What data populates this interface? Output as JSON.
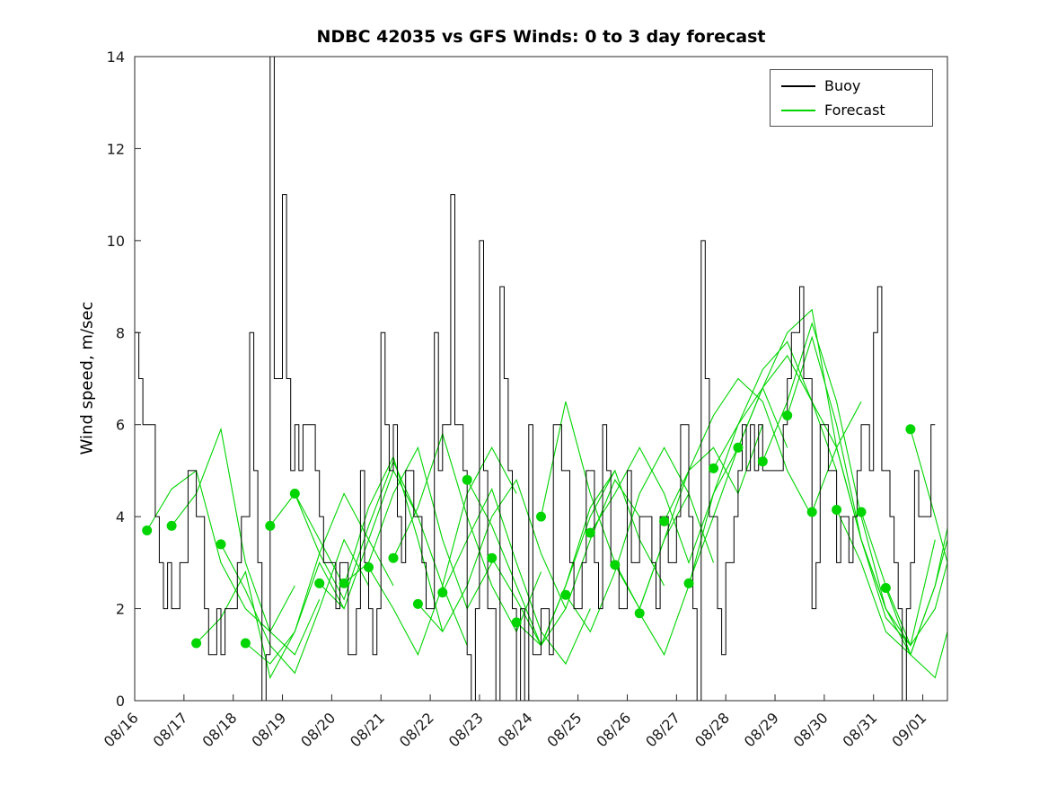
{
  "title": "NDBC 42035 vs GFS Winds: 0 to 3 day forecast",
  "legend": {
    "items": [
      {
        "label": "Buoy",
        "color": "#000000"
      },
      {
        "label": "Forecast",
        "color": "#00d500"
      }
    ],
    "position": "top-right"
  },
  "colors": {
    "buoy": "#000000",
    "forecast": "#00d500",
    "axis": "#262626",
    "background": "#ffffff"
  },
  "chart_data": {
    "type": "line",
    "title": "NDBC 42035 vs GFS Winds: 0 to 3 day forecast",
    "xlabel": "",
    "ylabel": "Wind speed, m/sec",
    "xlim": [
      0,
      16.5
    ],
    "ylim": [
      0,
      14
    ],
    "grid": false,
    "x_ticks": [
      0,
      1,
      2,
      3,
      4,
      5,
      6,
      7,
      8,
      9,
      10,
      11,
      12,
      13,
      14,
      15,
      16
    ],
    "x_tick_labels": [
      "08/16",
      "08/17",
      "08/18",
      "08/19",
      "08/20",
      "08/21",
      "08/22",
      "08/23",
      "08/24",
      "08/25",
      "08/26",
      "08/27",
      "08/28",
      "08/29",
      "08/30",
      "08/31",
      "09/01"
    ],
    "x_tick_angle": 45,
    "y_ticks": [
      0,
      2,
      4,
      6,
      8,
      10,
      12,
      14
    ],
    "series": [
      {
        "name": "Buoy",
        "style": "step",
        "color": "#000000",
        "x_start": 0,
        "dt": 0.0833333,
        "values": [
          8,
          7,
          6,
          6,
          6,
          4,
          3,
          2,
          3,
          2,
          2,
          3,
          3,
          5,
          5,
          4,
          4,
          2,
          1,
          1,
          2,
          1,
          2,
          2,
          2,
          3,
          4,
          4,
          8,
          5,
          3,
          0,
          1,
          14,
          7,
          7,
          11,
          7,
          5,
          6,
          5,
          6,
          6,
          6,
          5,
          4,
          3,
          3,
          3,
          2,
          3,
          3,
          1,
          1,
          2,
          5,
          3,
          2,
          1,
          2,
          8,
          6,
          5,
          6,
          4,
          3,
          5,
          5,
          4,
          4,
          3,
          2,
          2,
          8,
          5,
          6,
          6,
          11,
          6,
          6,
          5,
          1,
          0,
          2,
          10,
          5,
          2,
          2,
          0,
          9,
          7,
          5,
          2,
          0,
          2,
          0,
          6,
          1,
          1,
          2,
          2,
          1,
          6,
          6,
          5,
          5,
          3,
          2,
          2,
          3,
          5,
          5,
          3,
          2,
          6,
          5,
          3,
          3,
          2,
          2,
          5,
          3,
          3,
          4,
          4,
          4,
          3,
          2,
          4,
          4,
          3,
          3,
          4,
          6,
          6,
          4,
          2,
          0,
          10,
          7,
          4,
          4,
          2,
          1,
          3,
          3,
          4,
          5,
          6,
          5,
          6,
          5,
          6,
          5,
          5,
          5,
          5,
          5,
          6,
          7,
          8,
          8,
          9,
          7,
          7,
          2,
          3,
          6,
          6,
          5,
          5,
          3,
          4,
          4,
          3,
          4,
          5,
          6,
          6,
          5,
          8,
          9,
          5,
          5,
          4,
          3,
          2,
          0,
          2,
          3,
          5,
          4,
          4,
          4,
          6,
          6
        ]
      },
      {
        "name": "Forecast",
        "style": "multi-line",
        "color": "#00d500",
        "markers_at_run_start": true,
        "marker_radius": 5.5,
        "run_dt": 0.5,
        "runs": [
          {
            "t0": 0.25,
            "values": [
              3.7,
              4.6,
              5.0,
              3.0,
              2.0,
              1.5,
              2.5
            ]
          },
          {
            "t0": 0.75,
            "values": [
              3.8,
              4.5,
              5.9,
              3.0,
              1.5,
              1.0,
              2.2
            ]
          },
          {
            "t0": 1.25,
            "values": [
              1.25,
              1.8,
              2.8,
              0.5,
              1.5,
              3.0,
              2.0
            ]
          },
          {
            "t0": 1.75,
            "values": [
              3.4,
              2.4,
              1.2,
              0.6,
              2.0,
              3.5,
              2.5
            ]
          },
          {
            "t0": 2.25,
            "values": [
              1.25,
              0.8,
              1.5,
              3.2,
              4.5,
              3.5,
              2.5
            ]
          },
          {
            "t0": 2.75,
            "values": [
              3.8,
              4.5,
              3.2,
              2.2,
              3.8,
              5.2,
              4.0
            ]
          },
          {
            "t0": 3.25,
            "values": [
              4.5,
              3.5,
              2.5,
              4.2,
              5.3,
              3.5,
              1.5
            ]
          },
          {
            "t0": 3.75,
            "values": [
              2.55,
              2.0,
              3.5,
              5.0,
              4.0,
              2.5,
              1.2
            ]
          },
          {
            "t0": 4.25,
            "values": [
              2.55,
              3.0,
              4.5,
              5.5,
              3.5,
              2.0,
              3.0
            ]
          },
          {
            "t0": 4.75,
            "values": [
              2.9,
              2.0,
              1.0,
              2.5,
              4.5,
              5.5,
              4.5
            ]
          },
          {
            "t0": 5.25,
            "values": [
              3.1,
              4.2,
              5.8,
              4.0,
              2.5,
              1.5,
              2.8
            ]
          },
          {
            "t0": 5.75,
            "values": [
              2.1,
              1.5,
              2.5,
              4.0,
              4.8,
              3.2,
              2.0
            ]
          },
          {
            "t0": 6.25,
            "values": [
              2.35,
              3.5,
              4.6,
              3.0,
              1.5,
              0.8,
              2.0
            ]
          },
          {
            "t0": 6.75,
            "values": [
              4.8,
              3.8,
              2.5,
              1.2,
              2.5,
              4.0,
              5.0
            ]
          },
          {
            "t0": 7.25,
            "values": [
              3.1,
              2.2,
              1.2,
              2.0,
              3.5,
              4.8,
              4.0
            ]
          },
          {
            "t0": 7.75,
            "values": [
              1.7,
              1.2,
              2.5,
              4.2,
              5.0,
              3.5,
              2.5
            ]
          },
          {
            "t0": 8.25,
            "values": [
              4.0,
              6.5,
              4.5,
              3.0,
              2.0,
              3.5,
              4.5
            ]
          },
          {
            "t0": 8.75,
            "values": [
              2.3,
              1.5,
              2.8,
              4.5,
              5.5,
              4.5,
              3.0
            ]
          },
          {
            "t0": 9.25,
            "values": [
              3.65,
              4.5,
              5.5,
              4.5,
              3.0,
              4.5,
              5.5
            ]
          },
          {
            "t0": 9.75,
            "values": [
              2.95,
              2.0,
              3.5,
              5.0,
              5.5,
              4.5,
              6.0
            ]
          },
          {
            "t0": 10.25,
            "values": [
              1.9,
              1.0,
              2.5,
              4.5,
              6.0,
              6.8,
              5.5
            ]
          },
          {
            "t0": 10.75,
            "values": [
              3.9,
              5.0,
              6.2,
              7.0,
              6.5,
              5.0,
              4.0
            ]
          },
          {
            "t0": 11.25,
            "values": [
              2.55,
              4.0,
              5.5,
              6.8,
              7.5,
              6.5,
              5.0
            ]
          },
          {
            "t0": 11.75,
            "values": [
              5.05,
              6.0,
              7.2,
              7.8,
              6.5,
              5.5,
              6.5
            ]
          },
          {
            "t0": 12.25,
            "values": [
              5.5,
              6.8,
              8.0,
              8.5,
              5.5,
              3.5,
              2.0
            ]
          },
          {
            "t0": 12.75,
            "values": [
              5.2,
              6.5,
              8.2,
              6.5,
              4.0,
              2.0,
              1.2
            ]
          },
          {
            "t0": 13.25,
            "values": [
              6.2,
              7.9,
              6.0,
              3.5,
              1.8,
              1.2,
              3.5
            ]
          },
          {
            "t0": 13.75,
            "values": [
              4.1,
              5.5,
              3.5,
              2.0,
              1.0,
              2.5,
              5.0
            ]
          },
          {
            "t0": 14.25,
            "values": [
              4.15,
              3.0,
              1.5,
              1.0,
              2.5,
              4.5,
              6.0
            ]
          },
          {
            "t0": 14.75,
            "values": [
              4.1,
              2.5,
              1.2,
              2.0,
              4.0,
              5.5,
              7.0
            ]
          },
          {
            "t0": 15.25,
            "values": [
              2.45,
              1.0,
              0.5,
              2.5,
              4.5,
              6.5,
              7.2
            ]
          },
          {
            "t0": 15.75,
            "values": [
              5.9,
              4.0,
              2.0,
              3.0,
              5.0,
              6.5,
              7.0
            ]
          }
        ]
      }
    ]
  }
}
